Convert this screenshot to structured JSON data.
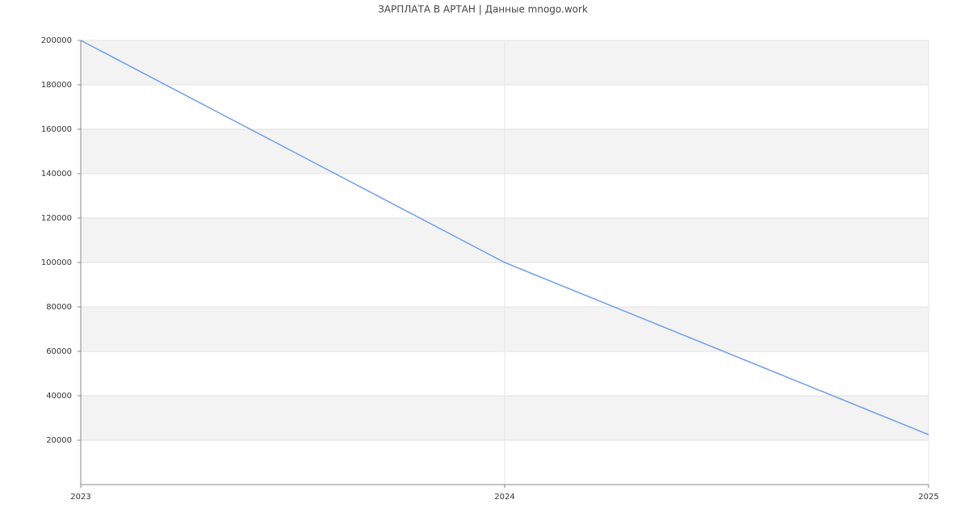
{
  "chart_data": {
    "type": "line",
    "title": "ЗАРПЛАТА В АРТАН | Данные mnogo.work",
    "x": [
      2023,
      2024,
      2025
    ],
    "series": [
      {
        "name": "Зарплата",
        "color": "#6d9eeb",
        "values": [
          200000,
          100000,
          22500
        ]
      }
    ],
    "xlim": [
      2023,
      2025
    ],
    "xticks": [
      2023,
      2024,
      2025
    ],
    "ylim": [
      0,
      200000
    ],
    "yticks": [
      20000,
      40000,
      60000,
      80000,
      100000,
      120000,
      140000,
      160000,
      180000,
      200000
    ],
    "grid": true
  }
}
